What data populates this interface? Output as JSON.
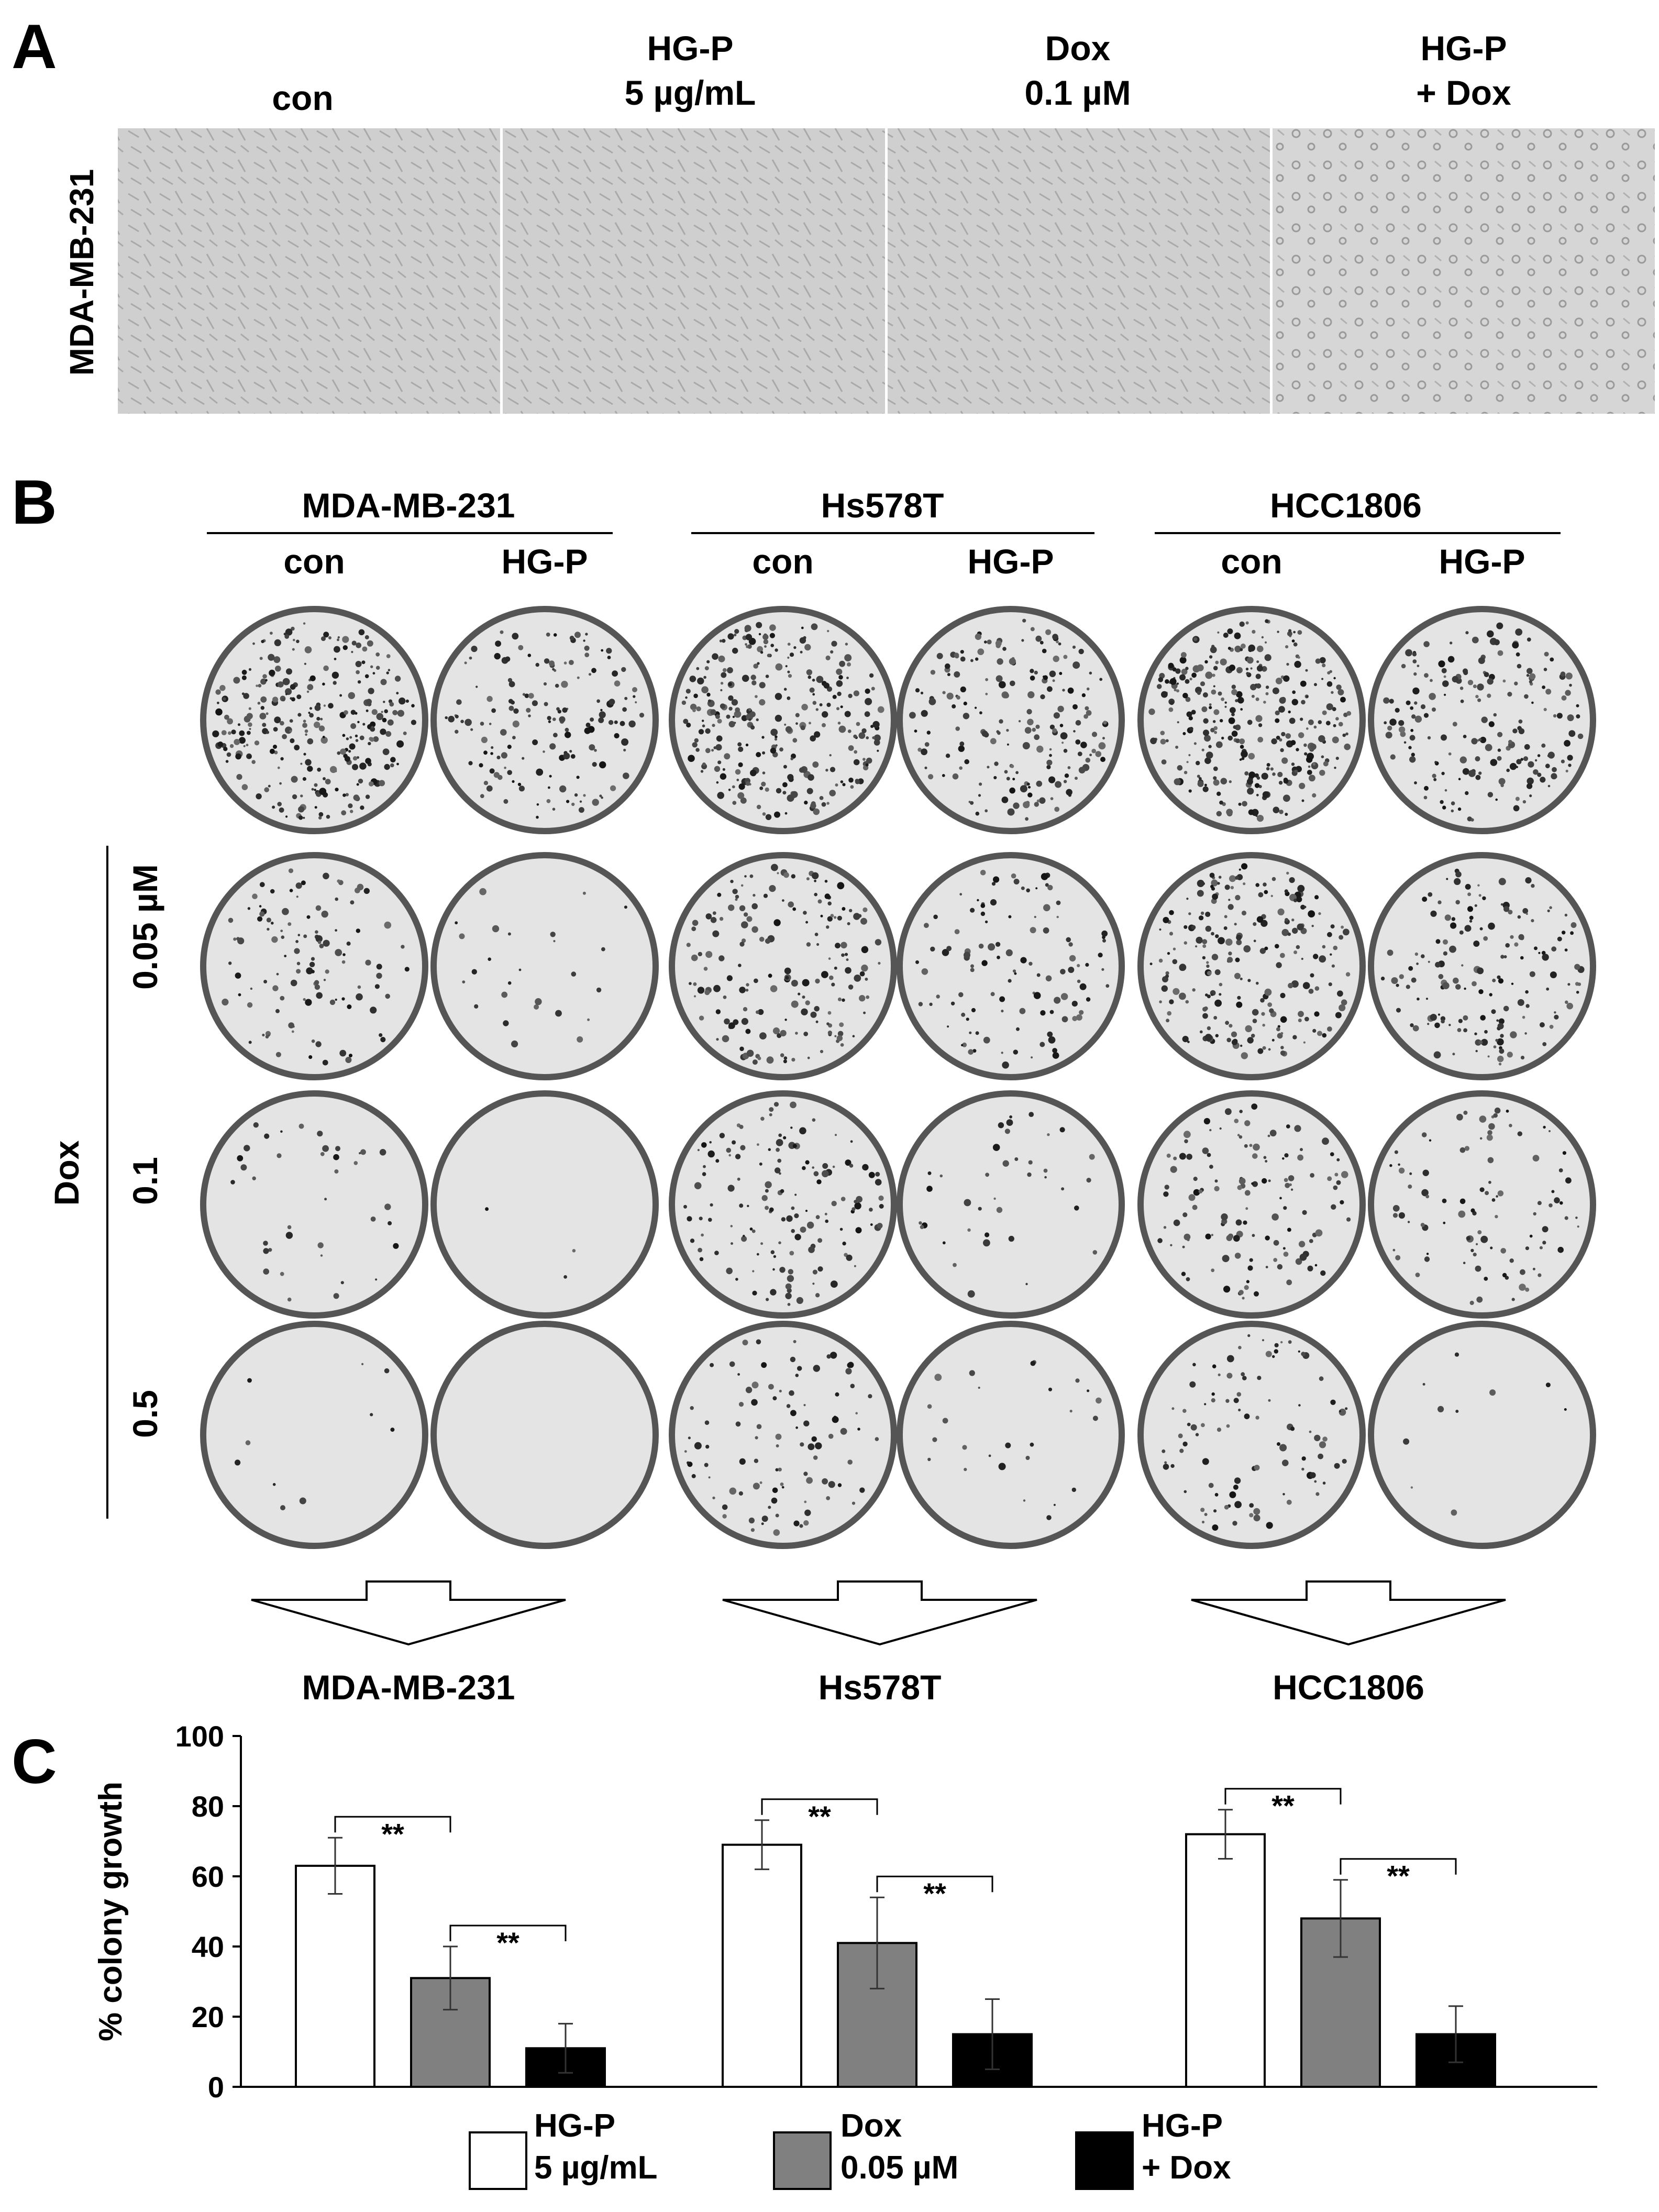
{
  "panel_a": {
    "letter": "A",
    "row_label": "MDA-MB-231",
    "columns": [
      {
        "lines": [
          "con"
        ]
      },
      {
        "lines": [
          "HG-P",
          "5 µg/mL"
        ]
      },
      {
        "lines": [
          "Dox",
          "0.1 µM"
        ]
      },
      {
        "lines": [
          "HG-P",
          "+ Dox"
        ]
      }
    ],
    "micrographs": [
      {
        "image": "cell-micrograph",
        "cell_morphology": "spindle"
      },
      {
        "image": "cell-micrograph",
        "cell_morphology": "spindle"
      },
      {
        "image": "cell-micrograph",
        "cell_morphology": "spindle"
      },
      {
        "image": "cell-micrograph",
        "cell_morphology": "rounded"
      }
    ]
  },
  "panel_b": {
    "letter": "B",
    "cell_lines": [
      {
        "name": "MDA-MB-231",
        "conditions": [
          "con",
          "HG-P"
        ]
      },
      {
        "name": "Hs578T",
        "conditions": [
          "con",
          "HG-P"
        ]
      },
      {
        "name": "HCC1806",
        "conditions": [
          "con",
          "HG-P"
        ]
      }
    ],
    "dox_label": "Dox",
    "dose_rows": [
      "",
      "0.05 µM",
      "0.1",
      "0.5"
    ],
    "plate_colony_density": [
      [
        0.9,
        0.5,
        0.9,
        0.6,
        1.0,
        0.6
      ],
      [
        0.35,
        0.08,
        0.55,
        0.35,
        0.7,
        0.5
      ],
      [
        0.12,
        0.01,
        0.45,
        0.12,
        0.4,
        0.3
      ],
      [
        0.03,
        0.0,
        0.3,
        0.08,
        0.3,
        0.03
      ]
    ],
    "arrows": [
      "down-arrow",
      "down-arrow",
      "down-arrow"
    ]
  },
  "panel_c": {
    "letter": "C",
    "group_labels": [
      "MDA-MB-231",
      "Hs578T",
      "HCC1806"
    ],
    "colors": {
      "hgp": "#ffffff",
      "dox": "#808080",
      "combo": "#000000"
    },
    "legend": [
      {
        "lines": [
          "HG-P",
          "5 µg/mL"
        ],
        "color": "#ffffff"
      },
      {
        "lines": [
          "Dox",
          "0.05 µM"
        ],
        "color": "#808080"
      },
      {
        "lines": [
          "HG-P",
          "+ Dox"
        ],
        "color": "#000000"
      }
    ],
    "significance": "**"
  },
  "chart_data": {
    "type": "bar",
    "categories": [
      "MDA-MB-231",
      "Hs578T",
      "HCC1806"
    ],
    "series": [
      {
        "name": "HG-P 5 µg/mL",
        "values": [
          63,
          69,
          72
        ],
        "errors": [
          8,
          7,
          7
        ]
      },
      {
        "name": "Dox 0.05 µM",
        "values": [
          31,
          41,
          48
        ],
        "errors": [
          9,
          13,
          11
        ]
      },
      {
        "name": "HG-P + Dox",
        "values": [
          11,
          15,
          15
        ],
        "errors": [
          7,
          10,
          8
        ]
      }
    ],
    "ylabel": "% colony growth",
    "xlabel": "",
    "ylim": [
      0,
      100
    ],
    "yticks": [
      0,
      20,
      40,
      60,
      80,
      100
    ],
    "grid": false,
    "legend_position": "bottom",
    "significance_brackets": [
      {
        "category": "MDA-MB-231",
        "from": "HG-P 5 µg/mL",
        "to": "Dox 0.05 µM",
        "label": "**"
      },
      {
        "category": "MDA-MB-231",
        "from": "Dox 0.05 µM",
        "to": "HG-P + Dox",
        "label": "**"
      },
      {
        "category": "Hs578T",
        "from": "HG-P 5 µg/mL",
        "to": "Dox 0.05 µM",
        "label": "**"
      },
      {
        "category": "Hs578T",
        "from": "Dox 0.05 µM",
        "to": "HG-P + Dox",
        "label": "**"
      },
      {
        "category": "HCC1806",
        "from": "HG-P 5 µg/mL",
        "to": "Dox 0.05 µM",
        "label": "**"
      },
      {
        "category": "HCC1806",
        "from": "Dox 0.05 µM",
        "to": "HG-P + Dox",
        "label": "**"
      }
    ]
  }
}
